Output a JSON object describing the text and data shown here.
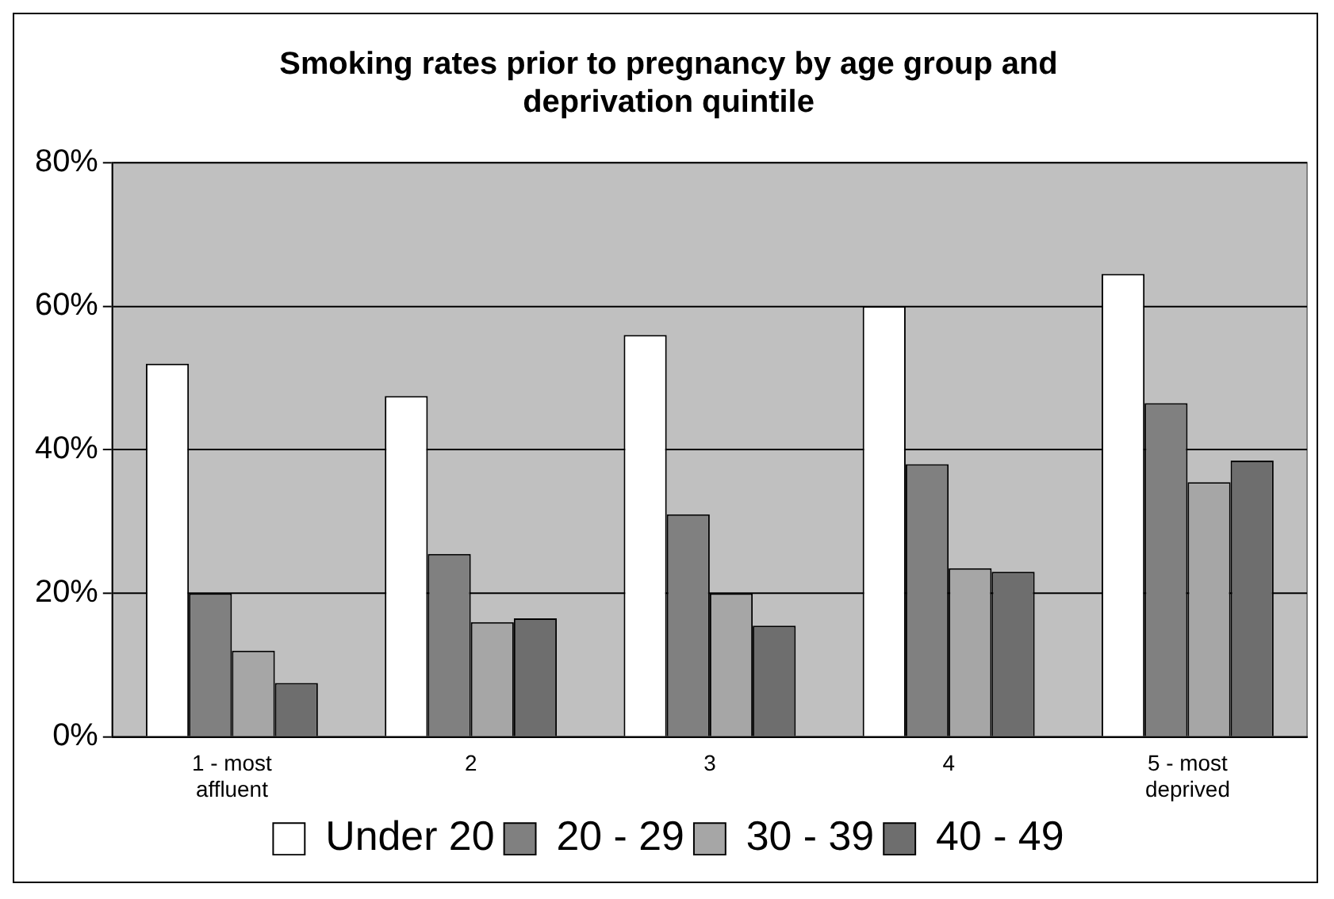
{
  "chart_data": {
    "type": "bar",
    "title": "Smoking rates prior to pregnancy by age group and deprivation quintile",
    "categories": [
      "1 - most affluent",
      "2",
      "3",
      "4",
      "5 - most deprived"
    ],
    "series": [
      {
        "name": "Under 20",
        "color": "#ffffff",
        "values": [
          52,
          47.5,
          56,
          60,
          64.5
        ]
      },
      {
        "name": "20 - 29",
        "color": "#808080",
        "values": [
          20,
          25.5,
          31,
          38,
          46.5
        ]
      },
      {
        "name": "30 - 39",
        "color": "#a6a6a6",
        "values": [
          12,
          16,
          20,
          23.5,
          35.5
        ]
      },
      {
        "name": "40 - 49",
        "color": "#6e6e6e",
        "values": [
          7.5,
          16.5,
          15.5,
          23,
          38.5
        ]
      }
    ],
    "ylim": [
      0,
      80
    ],
    "yticks": [
      {
        "value": 0,
        "label": "0%"
      },
      {
        "value": 20,
        "label": "20%"
      },
      {
        "value": 40,
        "label": "40%"
      },
      {
        "value": 60,
        "label": "60%"
      },
      {
        "value": 80,
        "label": "80%"
      }
    ],
    "grid": "y",
    "legend": "bottom"
  }
}
